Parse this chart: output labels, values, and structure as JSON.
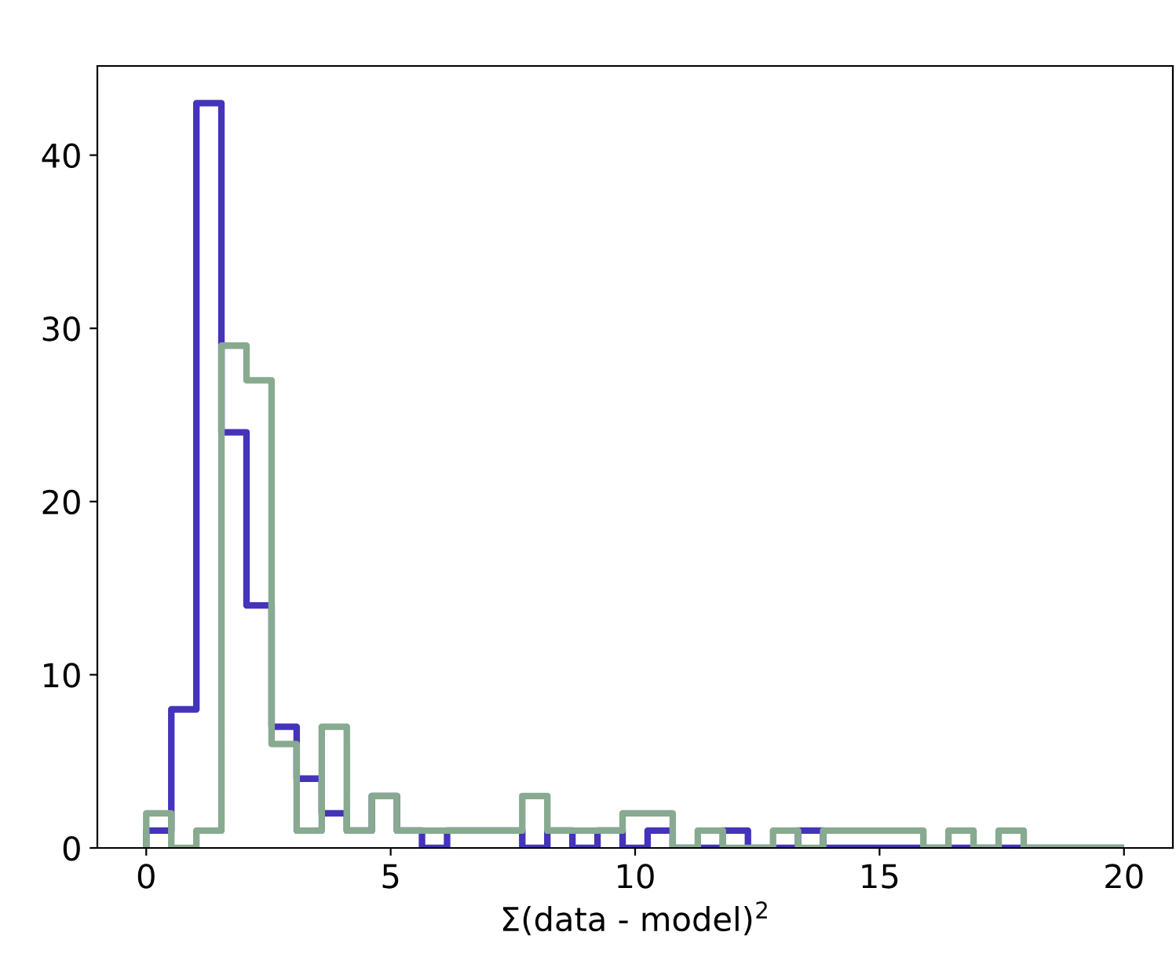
{
  "chart_data": {
    "type": "histogram",
    "xlabel": "Σ(data - model)$^{2}$",
    "bins": [
      0,
      0.513,
      1.026,
      1.538,
      2.051,
      2.564,
      3.077,
      3.59,
      4.103,
      4.615,
      5.128,
      5.641,
      6.154,
      6.667,
      7.179,
      7.692,
      8.205,
      8.718,
      9.231,
      9.744,
      10.256,
      10.769,
      11.282,
      11.795,
      12.308,
      12.821,
      13.333,
      13.846,
      14.359,
      14.872,
      15.385,
      15.897,
      16.41,
      16.923,
      17.436,
      17.949,
      18.462,
      18.974,
      19.487,
      20
    ],
    "series": [
      {
        "color": "#4433bb",
        "values": [
          1,
          8,
          43,
          24,
          14,
          7,
          4,
          2,
          1,
          3,
          1,
          0,
          1,
          1,
          1,
          0,
          1,
          0,
          1,
          0,
          1,
          0,
          0,
          1,
          0,
          0,
          1,
          0,
          0,
          0,
          0,
          0,
          0,
          0,
          0,
          0,
          0,
          0,
          0
        ]
      },
      {
        "color": "#88aa90",
        "values": [
          2,
          0,
          1,
          29,
          27,
          6,
          1,
          7,
          1,
          3,
          1,
          1,
          1,
          1,
          1,
          3,
          1,
          1,
          1,
          2,
          2,
          0,
          1,
          0,
          0,
          1,
          0,
          1,
          1,
          1,
          1,
          0,
          1,
          0,
          1,
          0,
          0,
          0,
          0
        ]
      }
    ],
    "xlim": [
      -1,
      21
    ],
    "xticks": [
      0,
      5,
      10,
      15,
      20
    ],
    "ylim": [
      0,
      45.15
    ],
    "yticks": [
      0,
      10,
      20,
      30,
      40
    ],
    "grid": false,
    "legend": false
  }
}
